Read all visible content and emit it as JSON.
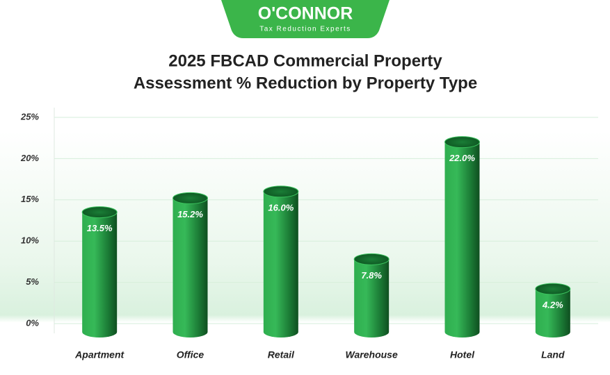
{
  "brand": {
    "name": "O'CONNOR",
    "tagline": "Tax Reduction Experts"
  },
  "chart_data": {
    "type": "bar",
    "title": [
      "2025 FBCAD Commercial Property",
      "Assessment % Reduction by Property Type"
    ],
    "categories": [
      "Apartment",
      "Office",
      "Retail",
      "Warehouse",
      "Hotel",
      "Land"
    ],
    "values": [
      13.5,
      15.2,
      16.0,
      7.8,
      22.0,
      4.2
    ],
    "value_labels": [
      "13.5%",
      "15.2%",
      "16.0%",
      "7.8%",
      "22.0%",
      "4.2%"
    ],
    "color": "#1f8a3c",
    "ylim": [
      0,
      25
    ],
    "yticks": [
      {
        "value": 0,
        "label": "0%"
      },
      {
        "value": 5,
        "label": "5%"
      },
      {
        "value": 10,
        "label": "10%"
      },
      {
        "value": 15,
        "label": "15%"
      },
      {
        "value": 20,
        "label": "20%"
      },
      {
        "value": 25,
        "label": "25%"
      }
    ],
    "grid": true
  }
}
